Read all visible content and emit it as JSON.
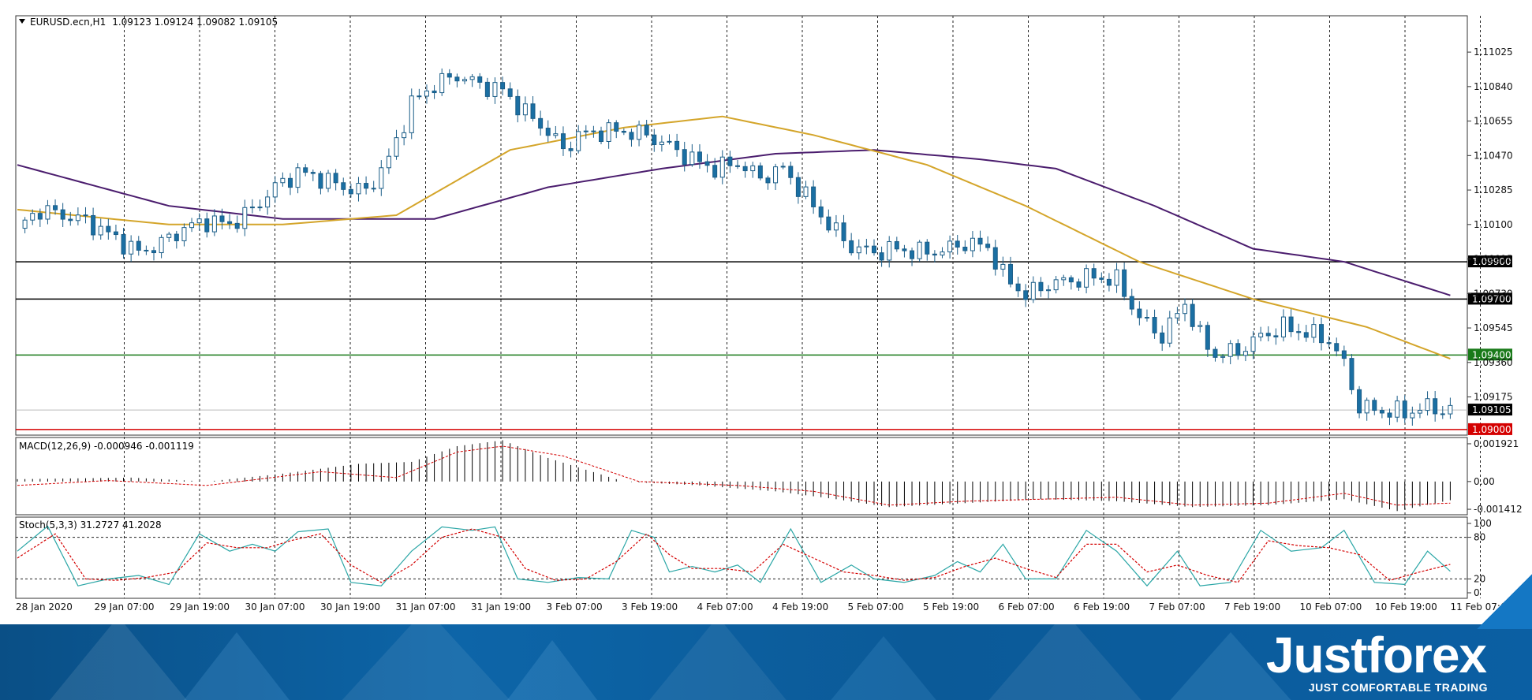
{
  "header": {
    "symbol": "EURUSD.ecn,H1",
    "ohlc": "1.09123 1.09124 1.09082 1.09105"
  },
  "macd_panel": {
    "label": "MACD(12,26,9) -0.000946 -0.001119"
  },
  "stoch_panel": {
    "label": "Stoch(5,3,3) 31.2727 41.2028"
  },
  "branding": {
    "logo": "Justforex",
    "tagline": "JUST COMFORTABLE TRADING"
  },
  "colors": {
    "candle_bull": "#ffffff",
    "candle_bear": "#1a6fa3",
    "ma_fast": "#d4a52a",
    "ma_slow": "#4b1d6e",
    "level_black": "#000000",
    "level_green": "#1a7a1a",
    "level_red": "#d40000",
    "stoch_main": "#2aa6a6",
    "stoch_signal": "#d40000"
  },
  "chart_data": [
    {
      "type": "candlestick",
      "title": "EURUSD.ecn,H1",
      "x_labels": [
        "28 Jan 2020",
        "29 Jan 07:00",
        "29 Jan 19:00",
        "30 Jan 07:00",
        "30 Jan 19:00",
        "31 Jan 07:00",
        "31 Jan 19:00",
        "3 Feb 07:00",
        "3 Feb 19:00",
        "4 Feb 07:00",
        "4 Feb 19:00",
        "5 Feb 07:00",
        "5 Feb 19:00",
        "6 Feb 07:00",
        "6 Feb 19:00",
        "7 Feb 07:00",
        "7 Feb 19:00",
        "10 Feb 07:00",
        "10 Feb 19:00",
        "11 Feb 07:00"
      ],
      "y_ticks": [
        "1.11025",
        "1.10840",
        "1.10655",
        "1.10470",
        "1.10285",
        "1.10100",
        "1.09915",
        "1.09730",
        "1.09545",
        "1.09360",
        "1.09175"
      ],
      "ylim": [
        1.0897,
        1.1122
      ],
      "close_path": [
        {
          "t": 0,
          "p": 1.1008
        },
        {
          "t": 3,
          "p": 1.1018
        },
        {
          "t": 6,
          "p": 1.1015
        },
        {
          "t": 9,
          "p": 1.1012
        },
        {
          "t": 12,
          "p": 1.1005
        },
        {
          "t": 16,
          "p": 1.0995
        },
        {
          "t": 19,
          "p": 1.1
        },
        {
          "t": 22,
          "p": 1.1008
        },
        {
          "t": 25,
          "p": 1.1012
        },
        {
          "t": 28,
          "p": 1.101
        },
        {
          "t": 31,
          "p": 1.1018
        },
        {
          "t": 34,
          "p": 1.103
        },
        {
          "t": 37,
          "p": 1.1038
        },
        {
          "t": 40,
          "p": 1.1035
        },
        {
          "t": 43,
          "p": 1.103
        },
        {
          "t": 46,
          "p": 1.1028
        },
        {
          "t": 49,
          "p": 1.1045
        },
        {
          "t": 52,
          "p": 1.1075
        },
        {
          "t": 55,
          "p": 1.1085
        },
        {
          "t": 58,
          "p": 1.109
        },
        {
          "t": 61,
          "p": 1.1085
        },
        {
          "t": 64,
          "p": 1.1082
        },
        {
          "t": 67,
          "p": 1.107
        },
        {
          "t": 70,
          "p": 1.106
        },
        {
          "t": 72,
          "p": 1.105
        },
        {
          "t": 74,
          "p": 1.1058
        },
        {
          "t": 77,
          "p": 1.106
        },
        {
          "t": 80,
          "p": 1.106
        },
        {
          "t": 83,
          "p": 1.1058
        },
        {
          "t": 86,
          "p": 1.1052
        },
        {
          "t": 89,
          "p": 1.1045
        },
        {
          "t": 92,
          "p": 1.104
        },
        {
          "t": 95,
          "p": 1.1043
        },
        {
          "t": 98,
          "p": 1.1035
        },
        {
          "t": 101,
          "p": 1.104
        },
        {
          "t": 104,
          "p": 1.1025
        },
        {
          "t": 107,
          "p": 1.101
        },
        {
          "t": 110,
          "p": 1.0998
        },
        {
          "t": 113,
          "p": 1.0995
        },
        {
          "t": 116,
          "p": 1.0997
        },
        {
          "t": 119,
          "p": 1.0995
        },
        {
          "t": 122,
          "p": 1.0996
        },
        {
          "t": 125,
          "p": 1.1
        },
        {
          "t": 128,
          "p": 1.0998
        },
        {
          "t": 130,
          "p": 1.0983
        },
        {
          "t": 133,
          "p": 1.0972
        },
        {
          "t": 136,
          "p": 1.0978
        },
        {
          "t": 139,
          "p": 1.098
        },
        {
          "t": 142,
          "p": 1.0982
        },
        {
          "t": 145,
          "p": 1.098
        },
        {
          "t": 148,
          "p": 1.096
        },
        {
          "t": 151,
          "p": 1.095
        },
        {
          "t": 154,
          "p": 1.0968
        },
        {
          "t": 156,
          "p": 1.095
        },
        {
          "t": 158,
          "p": 1.094
        },
        {
          "t": 161,
          "p": 1.0942
        },
        {
          "t": 164,
          "p": 1.095
        },
        {
          "t": 167,
          "p": 1.0955
        },
        {
          "t": 170,
          "p": 1.0952
        },
        {
          "t": 173,
          "p": 1.0948
        },
        {
          "t": 175,
          "p": 1.0935
        },
        {
          "t": 177,
          "p": 1.0912
        },
        {
          "t": 180,
          "p": 1.091
        },
        {
          "t": 183,
          "p": 1.0909
        },
        {
          "t": 186,
          "p": 1.0912
        },
        {
          "t": 189,
          "p": 1.091
        }
      ],
      "ma_fast": [
        {
          "t": 0,
          "p": 1.1018
        },
        {
          "t": 20,
          "p": 1.101
        },
        {
          "t": 35,
          "p": 1.101
        },
        {
          "t": 50,
          "p": 1.1015
        },
        {
          "t": 65,
          "p": 1.105
        },
        {
          "t": 80,
          "p": 1.1062
        },
        {
          "t": 93,
          "p": 1.1068
        },
        {
          "t": 105,
          "p": 1.1058
        },
        {
          "t": 120,
          "p": 1.1042
        },
        {
          "t": 133,
          "p": 1.102
        },
        {
          "t": 148,
          "p": 1.099
        },
        {
          "t": 163,
          "p": 1.097
        },
        {
          "t": 178,
          "p": 1.0955
        },
        {
          "t": 189,
          "p": 1.0938
        }
      ],
      "ma_slow": [
        {
          "t": 0,
          "p": 1.1042
        },
        {
          "t": 20,
          "p": 1.102
        },
        {
          "t": 35,
          "p": 1.1013
        },
        {
          "t": 55,
          "p": 1.1013
        },
        {
          "t": 70,
          "p": 1.103
        },
        {
          "t": 85,
          "p": 1.104
        },
        {
          "t": 100,
          "p": 1.1048
        },
        {
          "t": 113,
          "p": 1.105
        },
        {
          "t": 127,
          "p": 1.1045
        },
        {
          "t": 137,
          "p": 1.104
        },
        {
          "t": 150,
          "p": 1.102
        },
        {
          "t": 163,
          "p": 1.0997
        },
        {
          "t": 175,
          "p": 1.099
        },
        {
          "t": 189,
          "p": 1.0972
        }
      ],
      "levels": [
        {
          "value": 1.099,
          "label": "1.09900",
          "color": "#000000",
          "tag_bg": "#000000"
        },
        {
          "value": 1.097,
          "label": "1.09700",
          "color": "#000000",
          "tag_bg": "#000000"
        },
        {
          "value": 1.094,
          "label": "1.09400",
          "color": "#1a7a1a",
          "tag_bg": "#1a7a1a"
        },
        {
          "value": 1.09,
          "label": "1.09000",
          "color": "#d40000",
          "tag_bg": "#d40000"
        }
      ],
      "current_price": {
        "value": 1.09105,
        "label": "1.09105"
      }
    },
    {
      "type": "bar",
      "title": "MACD(12,26,9) -0.000946 -0.001119",
      "y_ticks": [
        "0.001921",
        "0.00",
        "-0.001412"
      ],
      "ylim": [
        -0.00165,
        0.0022
      ],
      "histogram": [
        {
          "t": 0,
          "v": 0.00012
        },
        {
          "t": 15,
          "v": 0.0002
        },
        {
          "t": 25,
          "v": 0.0
        },
        {
          "t": 35,
          "v": 0.0004
        },
        {
          "t": 45,
          "v": 0.0009
        },
        {
          "t": 52,
          "v": 0.001
        },
        {
          "t": 58,
          "v": 0.0018
        },
        {
          "t": 64,
          "v": 0.0021
        },
        {
          "t": 70,
          "v": 0.0012
        },
        {
          "t": 80,
          "v": 0.0
        },
        {
          "t": 90,
          "v": -0.0002
        },
        {
          "t": 100,
          "v": -0.0005
        },
        {
          "t": 108,
          "v": -0.0009
        },
        {
          "t": 115,
          "v": -0.0013
        },
        {
          "t": 125,
          "v": -0.0011
        },
        {
          "t": 135,
          "v": -0.0009
        },
        {
          "t": 145,
          "v": -0.001
        },
        {
          "t": 155,
          "v": -0.0013
        },
        {
          "t": 165,
          "v": -0.0012
        },
        {
          "t": 175,
          "v": -0.0009
        },
        {
          "t": 182,
          "v": -0.0015
        },
        {
          "t": 189,
          "v": -0.00095
        }
      ],
      "signal": [
        {
          "t": 0,
          "v": -0.0002
        },
        {
          "t": 12,
          "v": 5e-05
        },
        {
          "t": 25,
          "v": -0.0002
        },
        {
          "t": 40,
          "v": 0.0005
        },
        {
          "t": 50,
          "v": 0.0002
        },
        {
          "t": 58,
          "v": 0.0015
        },
        {
          "t": 64,
          "v": 0.0018
        },
        {
          "t": 72,
          "v": 0.0013
        },
        {
          "t": 82,
          "v": 0.0
        },
        {
          "t": 95,
          "v": -0.0002
        },
        {
          "t": 105,
          "v": -0.0005
        },
        {
          "t": 115,
          "v": -0.0012
        },
        {
          "t": 125,
          "v": -0.001
        },
        {
          "t": 135,
          "v": -0.0009
        },
        {
          "t": 145,
          "v": -0.0008
        },
        {
          "t": 155,
          "v": -0.0012
        },
        {
          "t": 165,
          "v": -0.0011
        },
        {
          "t": 175,
          "v": -0.0006
        },
        {
          "t": 182,
          "v": -0.0012
        },
        {
          "t": 189,
          "v": -0.0011
        }
      ]
    },
    {
      "type": "line",
      "title": "Stoch(5,3,3) 31.2727 41.2028",
      "y_ticks": [
        "100",
        "80",
        "20",
        "0"
      ],
      "ylim": [
        0,
        100
      ],
      "levels": [
        80,
        20
      ],
      "main": [
        {
          "t": 0,
          "v": 60
        },
        {
          "t": 4,
          "v": 96
        },
        {
          "t": 8,
          "v": 10
        },
        {
          "t": 12,
          "v": 20
        },
        {
          "t": 16,
          "v": 25
        },
        {
          "t": 20,
          "v": 12
        },
        {
          "t": 24,
          "v": 85
        },
        {
          "t": 28,
          "v": 60
        },
        {
          "t": 31,
          "v": 70
        },
        {
          "t": 34,
          "v": 60
        },
        {
          "t": 37,
          "v": 88
        },
        {
          "t": 41,
          "v": 92
        },
        {
          "t": 44,
          "v": 15
        },
        {
          "t": 48,
          "v": 10
        },
        {
          "t": 52,
          "v": 60
        },
        {
          "t": 56,
          "v": 95
        },
        {
          "t": 60,
          "v": 90
        },
        {
          "t": 63,
          "v": 95
        },
        {
          "t": 66,
          "v": 20
        },
        {
          "t": 70,
          "v": 15
        },
        {
          "t": 74,
          "v": 22
        },
        {
          "t": 78,
          "v": 20
        },
        {
          "t": 81,
          "v": 90
        },
        {
          "t": 84,
          "v": 80
        },
        {
          "t": 86,
          "v": 30
        },
        {
          "t": 89,
          "v": 38
        },
        {
          "t": 92,
          "v": 30
        },
        {
          "t": 95,
          "v": 40
        },
        {
          "t": 98,
          "v": 15
        },
        {
          "t": 102,
          "v": 92
        },
        {
          "t": 106,
          "v": 15
        },
        {
          "t": 110,
          "v": 40
        },
        {
          "t": 113,
          "v": 20
        },
        {
          "t": 117,
          "v": 15
        },
        {
          "t": 121,
          "v": 25
        },
        {
          "t": 124,
          "v": 45
        },
        {
          "t": 127,
          "v": 30
        },
        {
          "t": 130,
          "v": 70
        },
        {
          "t": 133,
          "v": 20
        },
        {
          "t": 137,
          "v": 20
        },
        {
          "t": 141,
          "v": 90
        },
        {
          "t": 145,
          "v": 60
        },
        {
          "t": 149,
          "v": 10
        },
        {
          "t": 153,
          "v": 60
        },
        {
          "t": 156,
          "v": 10
        },
        {
          "t": 160,
          "v": 15
        },
        {
          "t": 164,
          "v": 90
        },
        {
          "t": 168,
          "v": 60
        },
        {
          "t": 172,
          "v": 65
        },
        {
          "t": 175,
          "v": 90
        },
        {
          "t": 179,
          "v": 15
        },
        {
          "t": 183,
          "v": 12
        },
        {
          "t": 186,
          "v": 60
        },
        {
          "t": 189,
          "v": 31
        }
      ],
      "signal": [
        {
          "t": 0,
          "v": 50
        },
        {
          "t": 5,
          "v": 85
        },
        {
          "t": 9,
          "v": 20
        },
        {
          "t": 13,
          "v": 18
        },
        {
          "t": 17,
          "v": 22
        },
        {
          "t": 21,
          "v": 30
        },
        {
          "t": 25,
          "v": 72
        },
        {
          "t": 29,
          "v": 65
        },
        {
          "t": 33,
          "v": 65
        },
        {
          "t": 36,
          "v": 75
        },
        {
          "t": 40,
          "v": 85
        },
        {
          "t": 44,
          "v": 40
        },
        {
          "t": 48,
          "v": 15
        },
        {
          "t": 52,
          "v": 40
        },
        {
          "t": 56,
          "v": 80
        },
        {
          "t": 60,
          "v": 92
        },
        {
          "t": 64,
          "v": 80
        },
        {
          "t": 67,
          "v": 35
        },
        {
          "t": 71,
          "v": 18
        },
        {
          "t": 75,
          "v": 20
        },
        {
          "t": 79,
          "v": 45
        },
        {
          "t": 83,
          "v": 85
        },
        {
          "t": 86,
          "v": 55
        },
        {
          "t": 89,
          "v": 35
        },
        {
          "t": 93,
          "v": 35
        },
        {
          "t": 97,
          "v": 30
        },
        {
          "t": 101,
          "v": 70
        },
        {
          "t": 105,
          "v": 50
        },
        {
          "t": 109,
          "v": 30
        },
        {
          "t": 113,
          "v": 25
        },
        {
          "t": 117,
          "v": 18
        },
        {
          "t": 121,
          "v": 22
        },
        {
          "t": 125,
          "v": 38
        },
        {
          "t": 129,
          "v": 50
        },
        {
          "t": 133,
          "v": 35
        },
        {
          "t": 137,
          "v": 22
        },
        {
          "t": 141,
          "v": 70
        },
        {
          "t": 145,
          "v": 70
        },
        {
          "t": 149,
          "v": 30
        },
        {
          "t": 153,
          "v": 40
        },
        {
          "t": 157,
          "v": 25
        },
        {
          "t": 161,
          "v": 15
        },
        {
          "t": 165,
          "v": 75
        },
        {
          "t": 169,
          "v": 68
        },
        {
          "t": 173,
          "v": 65
        },
        {
          "t": 177,
          "v": 55
        },
        {
          "t": 181,
          "v": 18
        },
        {
          "t": 185,
          "v": 30
        },
        {
          "t": 189,
          "v": 41
        }
      ]
    }
  ]
}
